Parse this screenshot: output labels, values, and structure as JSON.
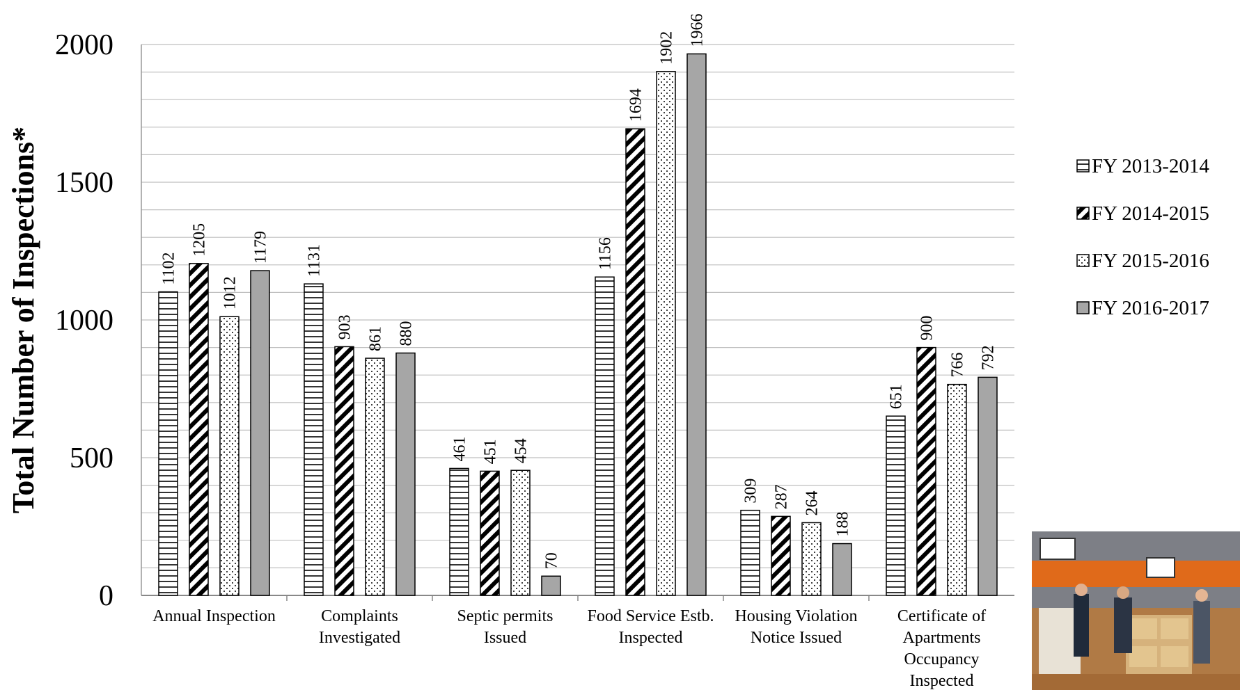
{
  "chart_data": {
    "type": "bar",
    "ylabel": "Total Number of Inspections*",
    "xlabel": "",
    "ylim": [
      0,
      2000
    ],
    "yticks": [
      0,
      500,
      1000,
      1500,
      2000
    ],
    "grid": true,
    "legend_position": "right",
    "categories": [
      [
        "Annual Inspection"
      ],
      [
        "Complaints",
        "Investigated"
      ],
      [
        "Septic permits",
        "Issued"
      ],
      [
        "Food Service Estb.",
        "Inspected"
      ],
      [
        "Housing Violation",
        "Notice Issued"
      ],
      [
        "Certificate of",
        "Apartments",
        "Occupancy",
        "Inspected"
      ]
    ],
    "series": [
      {
        "name": "FY 2013-2014",
        "pattern": "horizontal-stripes",
        "values": [
          1102,
          1131,
          461,
          1156,
          309,
          651
        ]
      },
      {
        "name": "FY 2014-2015",
        "pattern": "diagonal-stripes",
        "values": [
          1205,
          903,
          451,
          1694,
          287,
          900
        ]
      },
      {
        "name": "FY 2015-2016",
        "pattern": "dots",
        "values": [
          1012,
          861,
          454,
          1902,
          264,
          766
        ]
      },
      {
        "name": "FY 2016-2017",
        "pattern": "solid-gray",
        "values": [
          1179,
          880,
          70,
          1966,
          188,
          792
        ]
      }
    ],
    "colors": {
      "solid": "#a6a6a6",
      "stroke": "#000000",
      "grid": "#bfbfbf"
    }
  },
  "photo": {
    "description_icon": "photo-thumbnail"
  }
}
